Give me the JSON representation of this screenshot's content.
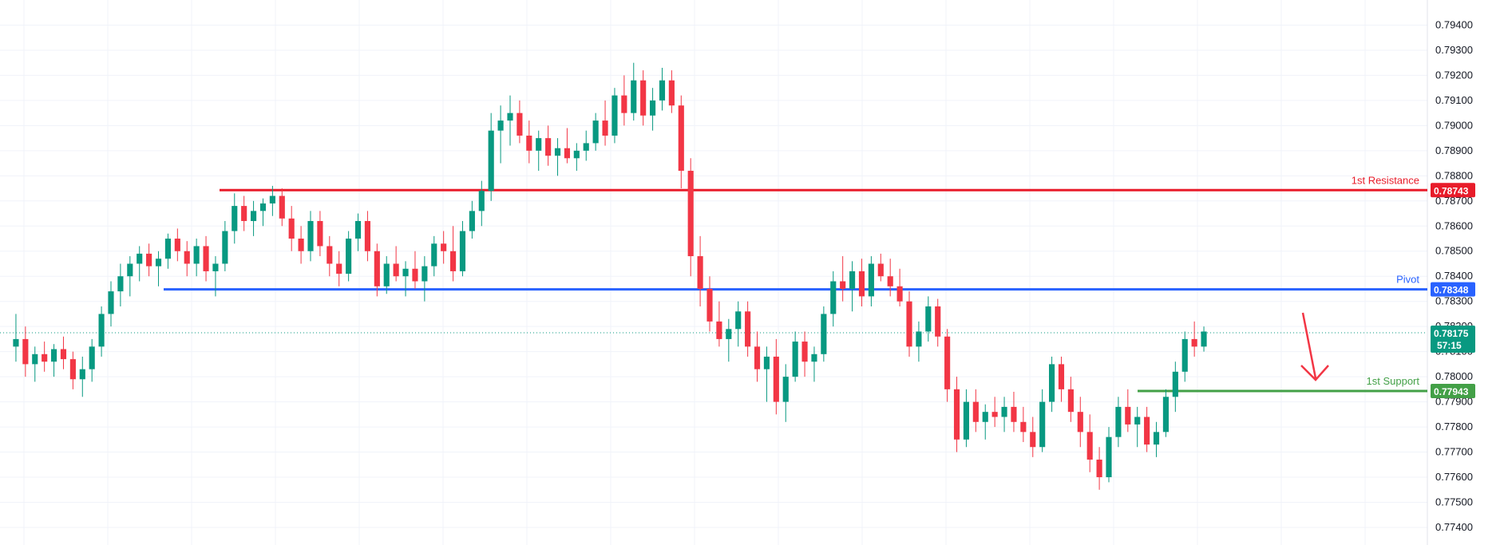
{
  "colors": {
    "up": "#089981",
    "down": "#f23645",
    "resistance": "#e81c2a",
    "pivot": "#2962ff",
    "support": "#43a047",
    "last_price": "#089981",
    "grid": "#f0f3fa",
    "axis_text": "#131722"
  },
  "chart_data": {
    "type": "candlestick",
    "y_axis": {
      "ylim": [
        0.7733,
        0.795
      ],
      "ticks": [
        "0.79400",
        "0.79300",
        "0.79200",
        "0.79100",
        "0.79000",
        "0.78900",
        "0.78800",
        "0.78700",
        "0.78600",
        "0.78500",
        "0.78400",
        "0.78300",
        "0.78200",
        "0.78100",
        "0.78000",
        "0.77900",
        "0.77800",
        "0.77700",
        "0.77600",
        "0.77500",
        "0.77400"
      ],
      "position": "right"
    },
    "levels": [
      {
        "label": "1st Resistance",
        "value": 0.78743,
        "badge": "0.78743",
        "color": "resistance"
      },
      {
        "label": "Pivot",
        "value": 0.78348,
        "badge": "0.78348",
        "color": "pivot"
      },
      {
        "label": "1st Support",
        "value": 0.77943,
        "badge": "0.77943",
        "color": "support"
      }
    ],
    "last_price": {
      "value": 0.78175,
      "badge": "0.78175",
      "countdown": "57:15"
    },
    "arrow": {
      "direction": "down",
      "color": "down"
    },
    "x_range": [
      0,
      300
    ],
    "candles": [
      [
        0.7812,
        0.7825,
        0.7806,
        0.7815
      ],
      [
        0.7815,
        0.782,
        0.78,
        0.7805
      ],
      [
        0.7805,
        0.7812,
        0.7798,
        0.7809
      ],
      [
        0.7809,
        0.7814,
        0.7802,
        0.7806
      ],
      [
        0.7806,
        0.7813,
        0.78,
        0.7811
      ],
      [
        0.7811,
        0.7816,
        0.7803,
        0.7807
      ],
      [
        0.7807,
        0.781,
        0.7795,
        0.7799
      ],
      [
        0.7799,
        0.7808,
        0.7792,
        0.7803
      ],
      [
        0.7803,
        0.7815,
        0.7798,
        0.7812
      ],
      [
        0.7812,
        0.7828,
        0.7808,
        0.7825
      ],
      [
        0.7825,
        0.7838,
        0.782,
        0.7834
      ],
      [
        0.7834,
        0.7845,
        0.7828,
        0.784
      ],
      [
        0.784,
        0.7848,
        0.7832,
        0.7845
      ],
      [
        0.7845,
        0.7852,
        0.7838,
        0.7849
      ],
      [
        0.7849,
        0.7853,
        0.784,
        0.7844
      ],
      [
        0.7844,
        0.785,
        0.7836,
        0.7847
      ],
      [
        0.7847,
        0.7857,
        0.7843,
        0.7855
      ],
      [
        0.7855,
        0.7859,
        0.7846,
        0.785
      ],
      [
        0.785,
        0.7854,
        0.784,
        0.7845
      ],
      [
        0.7845,
        0.7855,
        0.784,
        0.7852
      ],
      [
        0.7852,
        0.7856,
        0.7838,
        0.7842
      ],
      [
        0.7842,
        0.7848,
        0.7832,
        0.7845
      ],
      [
        0.7845,
        0.7862,
        0.7842,
        0.7858
      ],
      [
        0.7858,
        0.7873,
        0.7853,
        0.7868
      ],
      [
        0.7868,
        0.7872,
        0.7858,
        0.7862
      ],
      [
        0.7862,
        0.787,
        0.7856,
        0.7866
      ],
      [
        0.7866,
        0.7871,
        0.786,
        0.7869
      ],
      [
        0.7869,
        0.7876,
        0.7864,
        0.7872
      ],
      [
        0.7872,
        0.7875,
        0.786,
        0.7863
      ],
      [
        0.7863,
        0.7868,
        0.785,
        0.7855
      ],
      [
        0.7855,
        0.786,
        0.7845,
        0.785
      ],
      [
        0.785,
        0.7866,
        0.7846,
        0.7862
      ],
      [
        0.7862,
        0.7866,
        0.7848,
        0.7852
      ],
      [
        0.7852,
        0.7856,
        0.784,
        0.7845
      ],
      [
        0.7845,
        0.785,
        0.7836,
        0.7841
      ],
      [
        0.7841,
        0.7858,
        0.7838,
        0.7855
      ],
      [
        0.7855,
        0.7865,
        0.785,
        0.7862
      ],
      [
        0.7862,
        0.7866,
        0.7846,
        0.785
      ],
      [
        0.785,
        0.7853,
        0.7832,
        0.7836
      ],
      [
        0.7836,
        0.7848,
        0.7833,
        0.7845
      ],
      [
        0.7845,
        0.7852,
        0.7838,
        0.784
      ],
      [
        0.784,
        0.7846,
        0.7832,
        0.7843
      ],
      [
        0.7843,
        0.785,
        0.7835,
        0.7838
      ],
      [
        0.7838,
        0.7848,
        0.783,
        0.7844
      ],
      [
        0.7844,
        0.7856,
        0.784,
        0.7853
      ],
      [
        0.7853,
        0.7858,
        0.7845,
        0.785
      ],
      [
        0.785,
        0.786,
        0.7838,
        0.7842
      ],
      [
        0.7842,
        0.7862,
        0.784,
        0.7858
      ],
      [
        0.7858,
        0.787,
        0.7855,
        0.7866
      ],
      [
        0.7866,
        0.7878,
        0.786,
        0.7874
      ],
      [
        0.7874,
        0.7905,
        0.787,
        0.7898
      ],
      [
        0.7898,
        0.7908,
        0.7885,
        0.7902
      ],
      [
        0.7902,
        0.7912,
        0.7892,
        0.7905
      ],
      [
        0.7905,
        0.791,
        0.7893,
        0.7896
      ],
      [
        0.7896,
        0.7902,
        0.7885,
        0.789
      ],
      [
        0.789,
        0.7898,
        0.7882,
        0.7895
      ],
      [
        0.7895,
        0.79,
        0.7884,
        0.7888
      ],
      [
        0.7888,
        0.7895,
        0.788,
        0.7891
      ],
      [
        0.7891,
        0.7899,
        0.7885,
        0.7887
      ],
      [
        0.7887,
        0.7893,
        0.7882,
        0.789
      ],
      [
        0.789,
        0.7898,
        0.7886,
        0.7893
      ],
      [
        0.7893,
        0.7905,
        0.789,
        0.7902
      ],
      [
        0.7902,
        0.791,
        0.7892,
        0.7896
      ],
      [
        0.7896,
        0.7915,
        0.7893,
        0.7912
      ],
      [
        0.7912,
        0.792,
        0.79,
        0.7905
      ],
      [
        0.7905,
        0.7925,
        0.7902,
        0.7918
      ],
      [
        0.7918,
        0.7922,
        0.79,
        0.7904
      ],
      [
        0.7904,
        0.7915,
        0.7898,
        0.791
      ],
      [
        0.791,
        0.7923,
        0.7906,
        0.7918
      ],
      [
        0.7918,
        0.7922,
        0.7905,
        0.7908
      ],
      [
        0.7908,
        0.7912,
        0.7875,
        0.7882
      ],
      [
        0.7882,
        0.7887,
        0.784,
        0.7848
      ],
      [
        0.7848,
        0.7856,
        0.7828,
        0.7835
      ],
      [
        0.7835,
        0.784,
        0.7818,
        0.7822
      ],
      [
        0.7822,
        0.783,
        0.7812,
        0.7815
      ],
      [
        0.7815,
        0.7823,
        0.7806,
        0.7819
      ],
      [
        0.7819,
        0.783,
        0.7812,
        0.7826
      ],
      [
        0.7826,
        0.783,
        0.7808,
        0.7812
      ],
      [
        0.7812,
        0.7818,
        0.7798,
        0.7803
      ],
      [
        0.7803,
        0.7812,
        0.779,
        0.7808
      ],
      [
        0.7808,
        0.7815,
        0.7785,
        0.779
      ],
      [
        0.779,
        0.7805,
        0.7782,
        0.78
      ],
      [
        0.78,
        0.7818,
        0.7798,
        0.7814
      ],
      [
        0.7814,
        0.7818,
        0.78,
        0.7806
      ],
      [
        0.7806,
        0.7812,
        0.7798,
        0.7809
      ],
      [
        0.7809,
        0.7828,
        0.7806,
        0.7825
      ],
      [
        0.7825,
        0.7842,
        0.782,
        0.7838
      ],
      [
        0.7838,
        0.7848,
        0.783,
        0.7835
      ],
      [
        0.7835,
        0.7846,
        0.7826,
        0.7842
      ],
      [
        0.7842,
        0.7847,
        0.7828,
        0.7832
      ],
      [
        0.7832,
        0.7848,
        0.7828,
        0.7845
      ],
      [
        0.7845,
        0.7849,
        0.7838,
        0.784
      ],
      [
        0.784,
        0.7847,
        0.7832,
        0.7836
      ],
      [
        0.7836,
        0.7843,
        0.7828,
        0.783
      ],
      [
        0.783,
        0.7834,
        0.7808,
        0.7812
      ],
      [
        0.7812,
        0.7822,
        0.7806,
        0.7818
      ],
      [
        0.7818,
        0.7832,
        0.7814,
        0.7828
      ],
      [
        0.7828,
        0.7831,
        0.7812,
        0.7816
      ],
      [
        0.7816,
        0.7819,
        0.779,
        0.7795
      ],
      [
        0.7795,
        0.78,
        0.777,
        0.7775
      ],
      [
        0.7775,
        0.7795,
        0.7772,
        0.779
      ],
      [
        0.779,
        0.7795,
        0.7778,
        0.7782
      ],
      [
        0.7782,
        0.7789,
        0.7775,
        0.7786
      ],
      [
        0.7786,
        0.7792,
        0.778,
        0.7784
      ],
      [
        0.7784,
        0.7792,
        0.7778,
        0.7788
      ],
      [
        0.7788,
        0.7794,
        0.7778,
        0.7782
      ],
      [
        0.7782,
        0.7788,
        0.7774,
        0.7778
      ],
      [
        0.7778,
        0.7784,
        0.7768,
        0.7772
      ],
      [
        0.7772,
        0.7795,
        0.777,
        0.779
      ],
      [
        0.779,
        0.7808,
        0.7786,
        0.7805
      ],
      [
        0.7805,
        0.7808,
        0.779,
        0.7795
      ],
      [
        0.7795,
        0.78,
        0.7782,
        0.7786
      ],
      [
        0.7786,
        0.7792,
        0.7772,
        0.7778
      ],
      [
        0.7778,
        0.7785,
        0.7762,
        0.7767
      ],
      [
        0.7767,
        0.7772,
        0.7755,
        0.776
      ],
      [
        0.776,
        0.778,
        0.7758,
        0.7776
      ],
      [
        0.7776,
        0.7792,
        0.7772,
        0.7788
      ],
      [
        0.7788,
        0.7795,
        0.7778,
        0.7781
      ],
      [
        0.7781,
        0.7788,
        0.7772,
        0.7784
      ],
      [
        0.7784,
        0.7788,
        0.777,
        0.7773
      ],
      [
        0.7773,
        0.7782,
        0.7768,
        0.7778
      ],
      [
        0.7778,
        0.7795,
        0.7776,
        0.7792
      ],
      [
        0.7792,
        0.7806,
        0.7786,
        0.7802
      ],
      [
        0.7802,
        0.7818,
        0.7798,
        0.7815
      ],
      [
        0.7815,
        0.7822,
        0.7808,
        0.7812
      ],
      [
        0.7812,
        0.782,
        0.781,
        0.7818
      ]
    ]
  }
}
